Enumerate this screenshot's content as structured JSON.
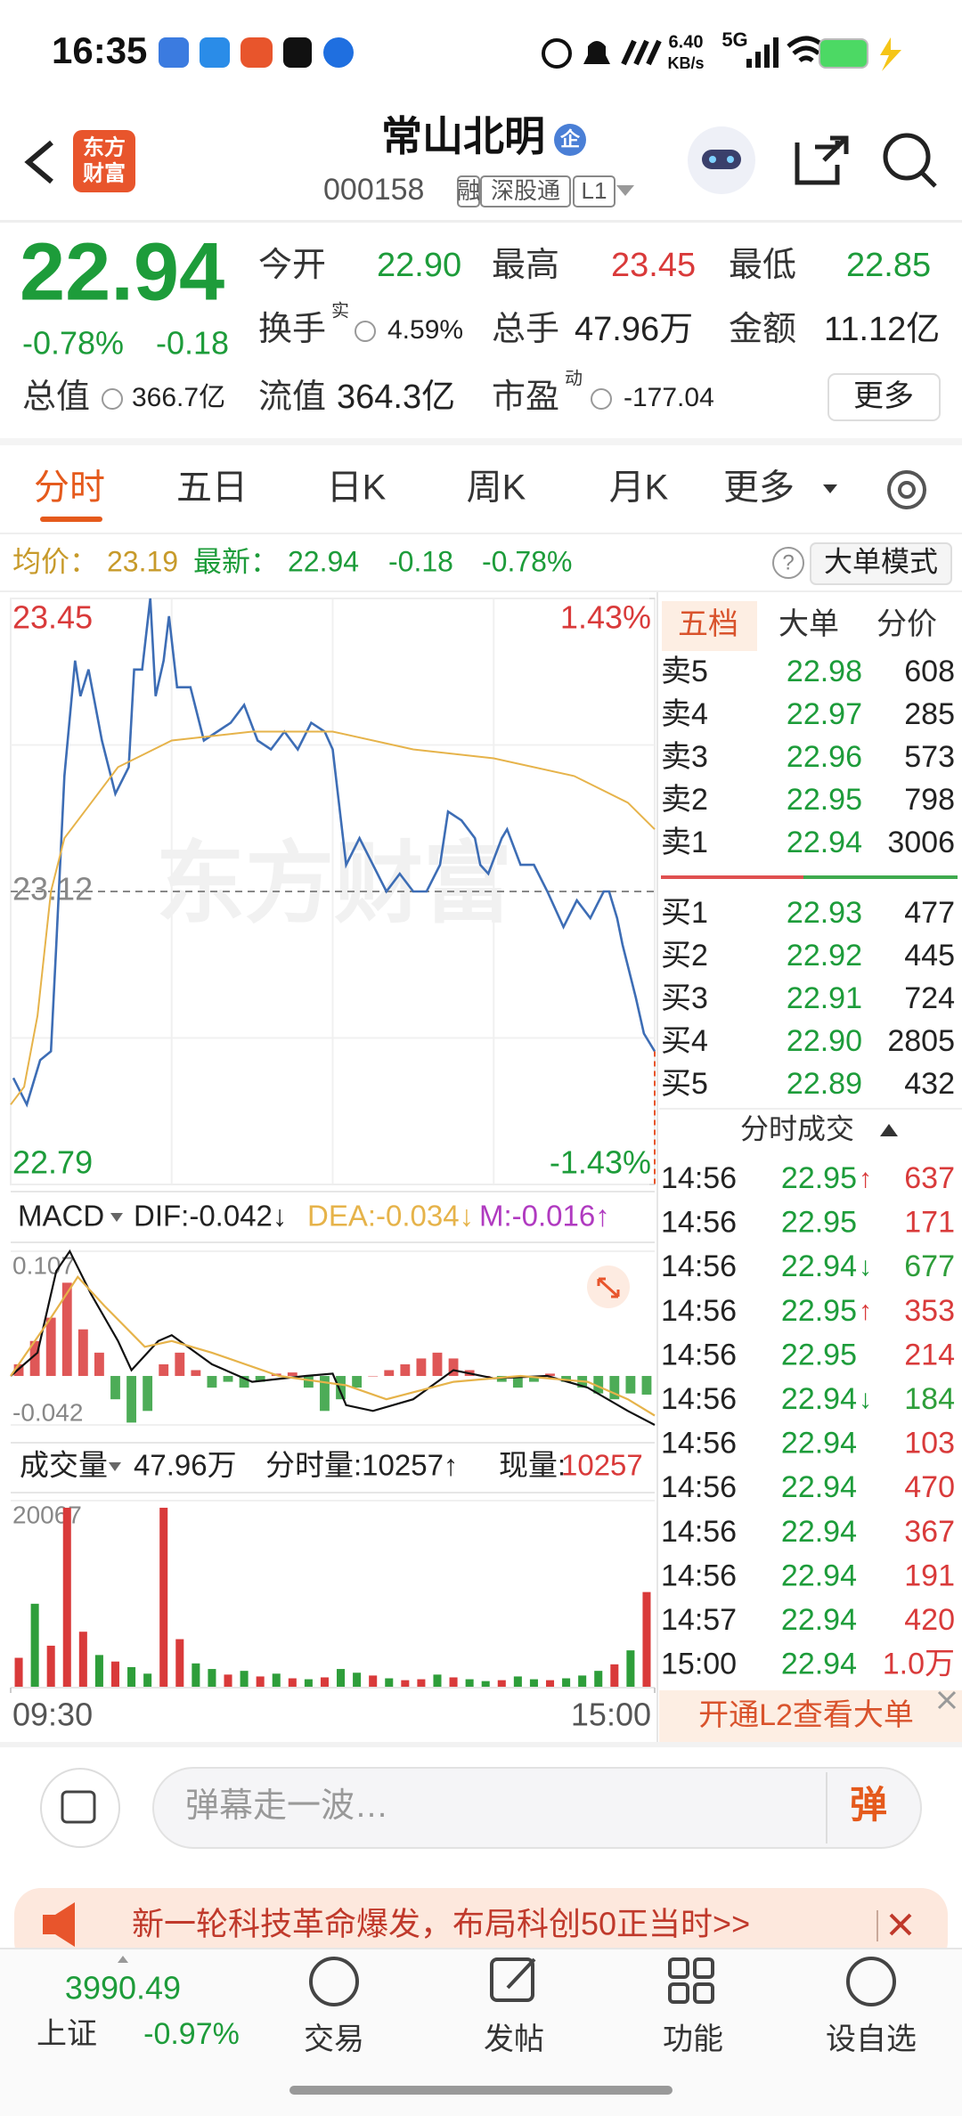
{
  "status_bar": {
    "time": "16:35",
    "speed_value": "6.40",
    "speed_unit": "KB/s",
    "network": "5G"
  },
  "header": {
    "logo": [
      "东方",
      "财富"
    ],
    "title": "常山北明",
    "badge": "企",
    "code": "000158",
    "tags": [
      "融",
      "深股通",
      "L1"
    ]
  },
  "quote": {
    "price": "22.94",
    "change_pct": "-0.78%",
    "change": "-0.18",
    "fields": [
      {
        "label": "今开",
        "value": "22.90",
        "color": "#1d9c3a"
      },
      {
        "label": "最高",
        "value": "23.45",
        "color": "#d93a3a"
      },
      {
        "label": "最低",
        "value": "22.85",
        "color": "#1d9c3a"
      },
      {
        "label": "换手",
        "sup": "实",
        "value": "4.59%"
      },
      {
        "label": "总手",
        "value": "47.96万"
      },
      {
        "label": "金额",
        "value": "11.12亿"
      },
      {
        "label": "总值",
        "value": "366.7亿"
      },
      {
        "label": "流值",
        "value": "364.3亿"
      },
      {
        "label": "市盈",
        "sup": "动",
        "value": "-177.04"
      }
    ],
    "more": "更多"
  },
  "tabs": [
    "分时",
    "五日",
    "日K",
    "周K",
    "月K",
    "更多"
  ],
  "info_row": {
    "avg_label": "均价：",
    "avg": "23.19",
    "latest_label": "最新：",
    "latest": "22.94",
    "change": "-0.18",
    "change_pct": "-0.78%",
    "help": "?",
    "mode": "大单模式"
  },
  "watermark": "东方财富",
  "price_chart": {
    "type": "line",
    "ylim": [
      22.79,
      23.45
    ],
    "yticks": [
      22.79,
      23.12,
      23.45
    ],
    "y2lim": [
      -1.43,
      1.43
    ],
    "y2ticks": [
      {
        "value": -1.43,
        "label": "-1.43%"
      },
      {
        "value": 1.43,
        "label": "1.43%"
      }
    ],
    "xlim": [
      0,
      240
    ],
    "xticks": [
      {
        "value": 0,
        "label": "09:30"
      },
      {
        "value": 240,
        "label": "15:00"
      }
    ],
    "series": [
      {
        "color": "#3d6db5",
        "x": [
          1,
          6,
          11,
          15,
          17,
          20,
          24,
          26,
          29,
          34,
          39,
          44,
          46,
          49,
          52,
          54,
          57,
          59,
          62,
          67,
          72,
          77,
          82,
          87,
          92,
          97,
          102,
          107,
          112,
          117,
          120,
          125,
          130,
          135,
          140,
          145,
          150,
          155,
          160,
          163,
          168,
          173,
          175,
          178,
          183,
          185,
          190,
          195,
          200,
          206,
          211,
          216,
          221,
          223,
          226,
          228,
          233,
          236,
          240
        ],
        "values": [
          22.91,
          22.88,
          22.93,
          22.94,
          23.06,
          23.25,
          23.38,
          23.34,
          23.37,
          23.29,
          23.23,
          23.26,
          23.37,
          23.37,
          23.45,
          23.34,
          23.38,
          23.43,
          23.35,
          23.35,
          23.29,
          23.3,
          23.31,
          23.33,
          23.29,
          23.28,
          23.3,
          23.28,
          23.31,
          23.3,
          23.28,
          23.15,
          23.18,
          23.15,
          23.12,
          23.14,
          23.12,
          23.12,
          23.15,
          23.21,
          23.2,
          23.18,
          23.15,
          23.14,
          23.18,
          23.19,
          23.15,
          23.15,
          23.12,
          23.08,
          23.11,
          23.09,
          23.12,
          23.12,
          23.09,
          23.06,
          23.0,
          22.96,
          22.94
        ]
      },
      {
        "color": "#e6b34a",
        "x": [
          0,
          5,
          10,
          15,
          20,
          30,
          40,
          60,
          90,
          120,
          150,
          180,
          210,
          230,
          240
        ],
        "values": [
          22.88,
          22.9,
          22.98,
          23.12,
          23.18,
          23.22,
          23.26,
          23.29,
          23.3,
          23.3,
          23.28,
          23.27,
          23.25,
          23.22,
          23.19
        ]
      }
    ]
  },
  "macd": {
    "type": "line",
    "label": "MACD",
    "dif_label": "DIF:-0.042↓",
    "dea_label": "DEA:-0.034↓",
    "m_label": "M:-0.016↑",
    "ylim": [
      -0.042,
      0.107
    ],
    "yticks": [
      -0.042,
      0.107
    ],
    "xlim": [
      0,
      240
    ],
    "series": [
      {
        "color": "#111111",
        "x": [
          0,
          10,
          17,
          22,
          30,
          40,
          45,
          55,
          60,
          75,
          90,
          110,
          120,
          125,
          135,
          150,
          165,
          180,
          200,
          215,
          230,
          240
        ],
        "values": [
          0.0,
          0.02,
          0.09,
          0.107,
          0.07,
          0.03,
          0.005,
          0.03,
          0.035,
          0.01,
          -0.005,
          0.0,
          0.002,
          -0.025,
          -0.03,
          -0.02,
          0.005,
          -0.002,
          0.0,
          -0.01,
          -0.03,
          -0.042
        ]
      },
      {
        "color": "#e6b34a",
        "x": [
          0,
          15,
          25,
          35,
          50,
          60,
          75,
          100,
          125,
          140,
          165,
          190,
          215,
          230,
          240
        ],
        "values": [
          0.0,
          0.05,
          0.085,
          0.06,
          0.025,
          0.03,
          0.02,
          0.0,
          -0.008,
          -0.02,
          -0.005,
          0.0,
          -0.005,
          -0.02,
          -0.034
        ]
      }
    ],
    "bars": [
      0.01,
      0.03,
      0.05,
      0.08,
      0.04,
      0.02,
      -0.02,
      -0.04,
      -0.03,
      0.01,
      0.02,
      0.005,
      -0.01,
      -0.005,
      -0.01,
      -0.005,
      0.002,
      0.003,
      -0.01,
      -0.03,
      -0.02,
      -0.01,
      0.0,
      0.005,
      0.01,
      0.015,
      0.02,
      0.015,
      0.005,
      0.0,
      -0.005,
      -0.01,
      -0.005,
      0.002,
      -0.005,
      -0.01,
      -0.015,
      -0.02,
      -0.015,
      -0.016
    ],
    "up_color": "#d93a3a",
    "down_color": "#2e9e3a"
  },
  "volume": {
    "type": "bar",
    "label": "成交量",
    "total": "47.96万",
    "tick_label": "分时量:10257↑",
    "now_label": "现量:",
    "now": "10257",
    "ylim": [
      0,
      20067
    ],
    "yticks": [
      20067
    ],
    "values": [
      3200,
      9000,
      4500,
      19300,
      6000,
      3500,
      2800,
      2200,
      1500,
      19300,
      5200,
      2600,
      2000,
      1400,
      1800,
      1200,
      1500,
      1000,
      900,
      1100,
      2000,
      1600,
      1300,
      1000,
      800,
      900,
      1400,
      1100,
      900,
      700,
      800,
      1200,
      900,
      800,
      1000,
      1300,
      1800,
      2500,
      4000,
      10257
    ],
    "colors": [
      "#d93a3a",
      "#2e9e3a",
      "#d93a3a",
      "#d93a3a",
      "#d93a3a",
      "#2e9e3a",
      "#d93a3a",
      "#2e9e3a",
      "#2e9e3a",
      "#d93a3a",
      "#d93a3a",
      "#2e9e3a",
      "#2e9e3a",
      "#d93a3a",
      "#2e9e3a",
      "#d93a3a",
      "#2e9e3a",
      "#d93a3a",
      "#2e9e3a",
      "#d93a3a",
      "#2e9e3a",
      "#2e9e3a",
      "#d93a3a",
      "#2e9e3a",
      "#d93a3a",
      "#d93a3a",
      "#2e9e3a",
      "#d93a3a",
      "#2e9e3a",
      "#2e9e3a",
      "#d93a3a",
      "#2e9e3a",
      "#2e9e3a",
      "#d93a3a",
      "#2e9e3a",
      "#2e9e3a",
      "#2e9e3a",
      "#d93a3a",
      "#2e9e3a",
      "#d93a3a"
    ]
  },
  "order_book": {
    "tabs": [
      "五档",
      "大单",
      "分价"
    ],
    "asks": [
      {
        "label": "卖5",
        "price": "22.98",
        "volume": "608"
      },
      {
        "label": "卖4",
        "price": "22.97",
        "volume": "285"
      },
      {
        "label": "卖3",
        "price": "22.96",
        "volume": "573"
      },
      {
        "label": "卖2",
        "price": "22.95",
        "volume": "798"
      },
      {
        "label": "卖1",
        "price": "22.94",
        "volume": "3006"
      }
    ],
    "bids": [
      {
        "label": "买1",
        "price": "22.93",
        "volume": "477"
      },
      {
        "label": "买2",
        "price": "22.92",
        "volume": "445"
      },
      {
        "label": "买3",
        "price": "22.91",
        "volume": "724"
      },
      {
        "label": "买4",
        "price": "22.90",
        "volume": "2805"
      },
      {
        "label": "买5",
        "price": "22.89",
        "volume": "432"
      }
    ],
    "trades_title": "分时成交",
    "trades": [
      {
        "time": "14:56",
        "price": "22.95",
        "arrow": "↑",
        "volume": "637",
        "color": "#d93a3a"
      },
      {
        "time": "14:56",
        "price": "22.95",
        "volume": "171",
        "color": "#d93a3a"
      },
      {
        "time": "14:56",
        "price": "22.94",
        "arrow": "↓",
        "volume": "677",
        "color": "#2e9e3a"
      },
      {
        "time": "14:56",
        "price": "22.95",
        "arrow": "↑",
        "volume": "353",
        "color": "#d93a3a"
      },
      {
        "time": "14:56",
        "price": "22.95",
        "volume": "214",
        "color": "#d93a3a"
      },
      {
        "time": "14:56",
        "price": "22.94",
        "arrow": "↓",
        "volume": "184",
        "color": "#2e9e3a"
      },
      {
        "time": "14:56",
        "price": "22.94",
        "volume": "103",
        "color": "#d93a3a"
      },
      {
        "time": "14:56",
        "price": "22.94",
        "volume": "470",
        "color": "#d93a3a"
      },
      {
        "time": "14:56",
        "price": "22.94",
        "volume": "367",
        "color": "#d93a3a"
      },
      {
        "time": "14:56",
        "price": "22.94",
        "volume": "191",
        "color": "#d93a3a"
      },
      {
        "time": "14:57",
        "price": "22.94",
        "volume": "420",
        "color": "#d93a3a"
      },
      {
        "time": "15:00",
        "price": "22.94",
        "volume": "1.0万",
        "color": "#d93a3a"
      }
    ],
    "l2_banner": "开通L2查看大单"
  },
  "comment_bar": {
    "placeholder": "弹幕走一波…",
    "button": "弹"
  },
  "ad": {
    "text": "新一轮科技革命爆发，布局科创50正当时>>"
  },
  "bottom_nav": {
    "index_value": "3990.49",
    "index_name": "上证",
    "index_change": "-0.97%",
    "items": [
      "交易",
      "发帖",
      "功能",
      "设自选"
    ]
  }
}
